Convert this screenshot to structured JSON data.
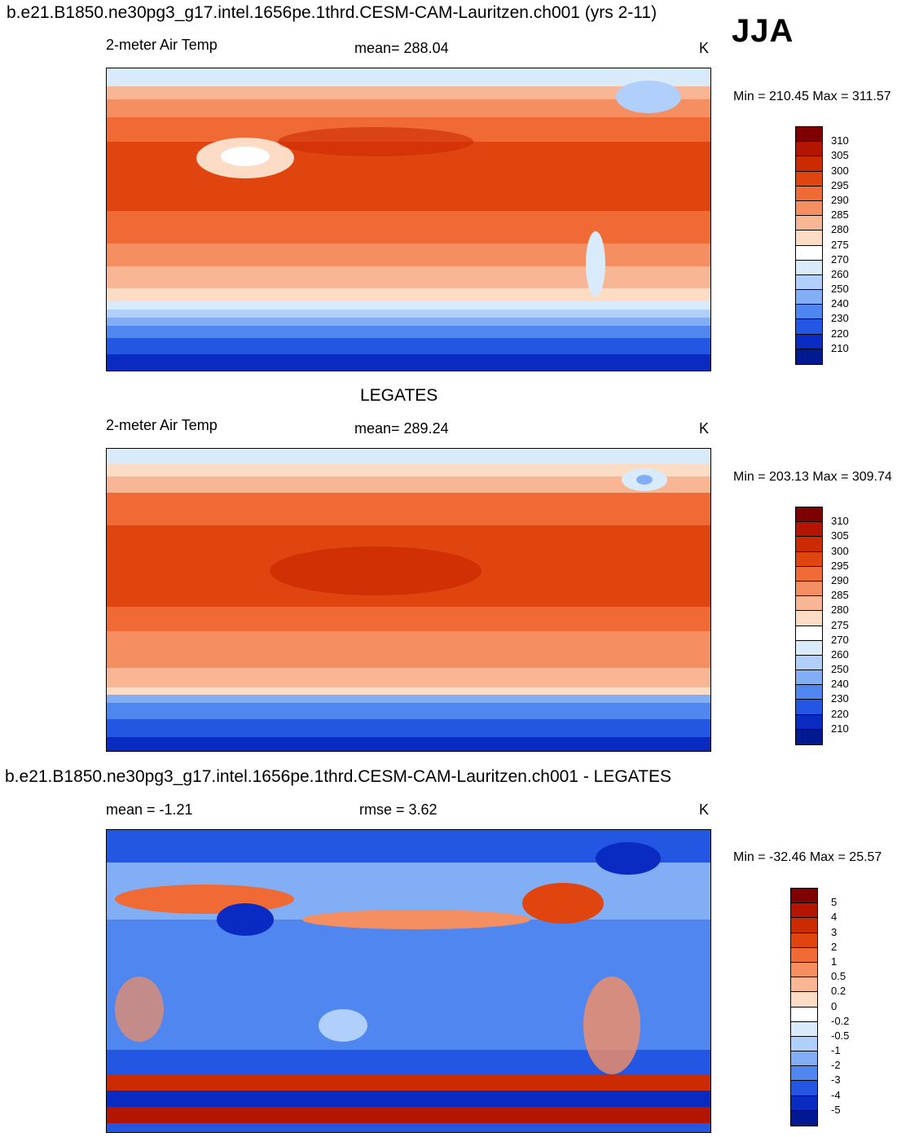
{
  "header": {
    "case_title": "b.e21.B1850.ne30pg3_g17.intel.1656pe.1thrd.CESM-CAM-Lauritzen.ch001 (yrs 2-11)",
    "season": "JJA"
  },
  "panel1": {
    "variable": "2-meter Air Temp",
    "mean": "mean= 288.04",
    "units": "K",
    "minmax": "Min = 210.45 Max = 311.57"
  },
  "panel2": {
    "title": "LEGATES",
    "variable": "2-meter Air Temp",
    "mean": "mean= 289.24",
    "units": "K",
    "minmax": "Min = 203.13 Max = 309.74"
  },
  "panel3": {
    "title": "b.e21.B1850.ne30pg3_g17.intel.1656pe.1thrd.CESM-CAM-Lauritzen.ch001 - LEGATES",
    "mean": "mean =  -1.21",
    "rmse": "rmse =   3.62",
    "units": "K",
    "minmax": "Min = -32.46 Max =  25.57"
  },
  "colorbars": {
    "temperature": {
      "labels": [
        "310",
        "305",
        "300",
        "295",
        "290",
        "285",
        "280",
        "275",
        "270",
        "260",
        "250",
        "240",
        "230",
        "220",
        "210"
      ],
      "colors": [
        "#7f0000",
        "#b31500",
        "#cc2a00",
        "#e0450f",
        "#f06a35",
        "#f58e61",
        "#f8b695",
        "#fddcc6",
        "#ffffff",
        "#d9ebfa",
        "#b0cffa",
        "#82aef5",
        "#4f86ef",
        "#2356e2",
        "#0a2bc2",
        "#001890"
      ]
    },
    "difference": {
      "labels": [
        "5",
        "4",
        "3",
        "2",
        "1",
        "0.5",
        "0.2",
        "0",
        "-0.2",
        "-0.5",
        "-1",
        "-2",
        "-3",
        "-4",
        "-5"
      ],
      "colors": [
        "#7f0000",
        "#b31500",
        "#cc2a00",
        "#e0450f",
        "#f06a35",
        "#f58e61",
        "#f8b695",
        "#fddcc6",
        "#ffffff",
        "#d9ebfa",
        "#b0cffa",
        "#82aef5",
        "#4f86ef",
        "#2356e2",
        "#0a2bc2",
        "#001890"
      ]
    }
  }
}
